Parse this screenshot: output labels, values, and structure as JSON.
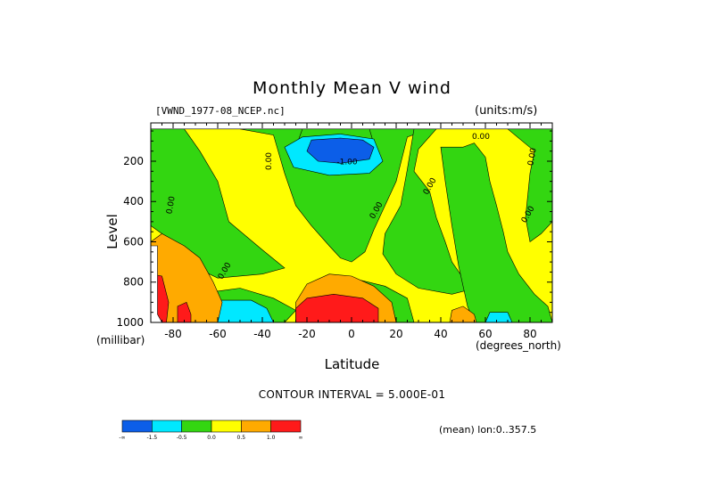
{
  "chart_data": {
    "type": "heatmap",
    "title": "Monthly Mean V wind",
    "dataset_label": "[VWND_1977-08_NCEP.nc]",
    "units_label": "(units:m/s)",
    "xlabel": "Latitude",
    "x_unit_label": "(degrees_north)",
    "ylabel": "Level",
    "y_unit_label": "(millibar)",
    "xlim": [
      -90,
      90
    ],
    "ylim": [
      1000,
      10
    ],
    "x_ticks": [
      "-80",
      "-60",
      "-40",
      "-20",
      "0",
      "20",
      "40",
      "60",
      "80"
    ],
    "x_tick_values": [
      -80,
      -60,
      -40,
      -20,
      0,
      20,
      40,
      60,
      80
    ],
    "y_ticks": [
      "200",
      "400",
      "600",
      "800",
      "1000"
    ],
    "y_tick_values": [
      200,
      400,
      600,
      800,
      1000
    ],
    "contour_interval_text": "CONTOUR INTERVAL = 5.000E-01",
    "footer_text": "(mean) lon:0..357.5",
    "contour_labels": [
      "0.00",
      "0.00",
      "0.00",
      "-1.00",
      "0.00",
      "0.00",
      "0.00",
      "0.00",
      "0.00"
    ],
    "colorbar": {
      "colors": [
        "#0c5ee8",
        "#00e8ff",
        "#33d611",
        "#ffff00",
        "#ffaa00",
        "#ff1a1a"
      ],
      "labels": [
        "-∞",
        "-1.5",
        "-0.5",
        "0.0",
        "0.5",
        "1.0",
        "∞"
      ]
    },
    "regions": [
      {
        "color": "#ffff00",
        "points": [
          [
            -90,
            1000
          ],
          [
            90,
            1000
          ],
          [
            90,
            40
          ],
          [
            -90,
            40
          ]
        ]
      },
      {
        "color": "#33d611",
        "points": [
          [
            -90,
            40
          ],
          [
            -75,
            40
          ],
          [
            -68,
            150
          ],
          [
            -60,
            300
          ],
          [
            -55,
            500
          ],
          [
            -40,
            640
          ],
          [
            -30,
            730
          ],
          [
            -40,
            760
          ],
          [
            -60,
            780
          ],
          [
            -75,
            700
          ],
          [
            -85,
            560
          ],
          [
            -90,
            520
          ]
        ]
      },
      {
        "color": "#33d611",
        "points": [
          [
            -50,
            40
          ],
          [
            -35,
            70
          ],
          [
            -30,
            260
          ],
          [
            -25,
            420
          ],
          [
            -18,
            520
          ],
          [
            -10,
            620
          ],
          [
            -5,
            680
          ],
          [
            0,
            700
          ],
          [
            6,
            650
          ],
          [
            10,
            540
          ],
          [
            15,
            420
          ],
          [
            20,
            300
          ],
          [
            25,
            80
          ],
          [
            35,
            40
          ]
        ]
      },
      {
        "color": "#33d611",
        "points": [
          [
            -22,
            40
          ],
          [
            8,
            40
          ],
          [
            12,
            190
          ],
          [
            5,
            260
          ],
          [
            -10,
            250
          ],
          [
            -20,
            200
          ],
          [
            -25,
            130
          ]
        ]
      },
      {
        "color": "#33d611",
        "points": [
          [
            28,
            40
          ],
          [
            38,
            40
          ],
          [
            30,
            140
          ],
          [
            28,
            250
          ],
          [
            35,
            350
          ],
          [
            38,
            480
          ],
          [
            42,
            600
          ],
          [
            45,
            700
          ],
          [
            50,
            780
          ],
          [
            52,
            840
          ],
          [
            45,
            860
          ],
          [
            30,
            830
          ],
          [
            20,
            760
          ],
          [
            14,
            660
          ],
          [
            15,
            560
          ],
          [
            22,
            420
          ],
          [
            25,
            240
          ]
        ]
      },
      {
        "color": "#33d611",
        "points": [
          [
            40,
            130
          ],
          [
            50,
            130
          ],
          [
            55,
            110
          ],
          [
            60,
            180
          ],
          [
            62,
            300
          ],
          [
            65,
            420
          ],
          [
            68,
            550
          ],
          [
            70,
            650
          ],
          [
            75,
            760
          ],
          [
            82,
            860
          ],
          [
            88,
            920
          ],
          [
            90,
            1000
          ],
          [
            55,
            1000
          ],
          [
            52,
            920
          ],
          [
            48,
            720
          ],
          [
            45,
            520
          ],
          [
            42,
            300
          ]
        ]
      },
      {
        "color": "#33d611",
        "points": [
          [
            70,
            40
          ],
          [
            90,
            40
          ],
          [
            90,
            500
          ],
          [
            85,
            560
          ],
          [
            80,
            600
          ],
          [
            78,
            480
          ],
          [
            80,
            260
          ],
          [
            82,
            150
          ]
        ]
      },
      {
        "color": "#33d611",
        "points": [
          [
            -70,
            860
          ],
          [
            -50,
            830
          ],
          [
            -35,
            880
          ],
          [
            -25,
            940
          ],
          [
            -30,
            1000
          ],
          [
            -65,
            1000
          ]
        ]
      },
      {
        "color": "#33d611",
        "points": [
          [
            -18,
            820
          ],
          [
            0,
            780
          ],
          [
            15,
            820
          ],
          [
            25,
            880
          ],
          [
            28,
            1000
          ],
          [
            -20,
            1000
          ]
        ]
      },
      {
        "color": "#00e8ff",
        "points": [
          [
            -60,
            890
          ],
          [
            -45,
            890
          ],
          [
            -38,
            930
          ],
          [
            -35,
            1000
          ],
          [
            -62,
            1000
          ]
        ]
      },
      {
        "color": "#00e8ff",
        "points": [
          [
            62,
            950
          ],
          [
            70,
            950
          ],
          [
            72,
            1000
          ],
          [
            60,
            1000
          ]
        ]
      },
      {
        "color": "#00e8ff",
        "points": [
          [
            -22,
            80
          ],
          [
            -30,
            130
          ],
          [
            -26,
            230
          ],
          [
            -10,
            270
          ],
          [
            8,
            260
          ],
          [
            14,
            200
          ],
          [
            10,
            90
          ],
          [
            -5,
            65
          ]
        ]
      },
      {
        "color": "#0c5ee8",
        "points": [
          [
            -18,
            95
          ],
          [
            -20,
            150
          ],
          [
            -15,
            200
          ],
          [
            -5,
            210
          ],
          [
            8,
            190
          ],
          [
            10,
            130
          ],
          [
            5,
            95
          ],
          [
            -5,
            85
          ]
        ]
      },
      {
        "color": "#ffaa00",
        "points": [
          [
            -90,
            600
          ],
          [
            -85,
            560
          ],
          [
            -75,
            620
          ],
          [
            -68,
            680
          ],
          [
            -62,
            800
          ],
          [
            -58,
            900
          ],
          [
            -60,
            1000
          ],
          [
            -90,
            1000
          ]
        ]
      },
      {
        "color": "#ffaa00",
        "points": [
          [
            -25,
            900
          ],
          [
            -20,
            810
          ],
          [
            -10,
            760
          ],
          [
            0,
            770
          ],
          [
            10,
            820
          ],
          [
            18,
            900
          ],
          [
            20,
            1000
          ],
          [
            -25,
            1000
          ]
        ]
      },
      {
        "color": "#ffaa00",
        "points": [
          [
            45,
            940
          ],
          [
            50,
            920
          ],
          [
            55,
            960
          ],
          [
            56,
            1000
          ],
          [
            44,
            1000
          ]
        ]
      },
      {
        "color": "#ff1a1a",
        "points": [
          [
            -90,
            760
          ],
          [
            -85,
            770
          ],
          [
            -82,
            900
          ],
          [
            -83,
            1000
          ],
          [
            -90,
            1000
          ]
        ]
      },
      {
        "color": "#ff1a1a",
        "points": [
          [
            -78,
            920
          ],
          [
            -74,
            900
          ],
          [
            -72,
            960
          ],
          [
            -72,
            1000
          ],
          [
            -78,
            1000
          ]
        ]
      },
      {
        "color": "#ff1a1a",
        "points": [
          [
            -25,
            930
          ],
          [
            -20,
            880
          ],
          [
            -8,
            860
          ],
          [
            5,
            880
          ],
          [
            12,
            930
          ],
          [
            12,
            1000
          ],
          [
            -25,
            1000
          ]
        ]
      },
      {
        "color": "#ffffff",
        "points": [
          [
            -90,
            620
          ],
          [
            -87,
            620
          ],
          [
            -87,
            960
          ],
          [
            -85,
            1000
          ],
          [
            -90,
            1000
          ]
        ]
      }
    ]
  }
}
